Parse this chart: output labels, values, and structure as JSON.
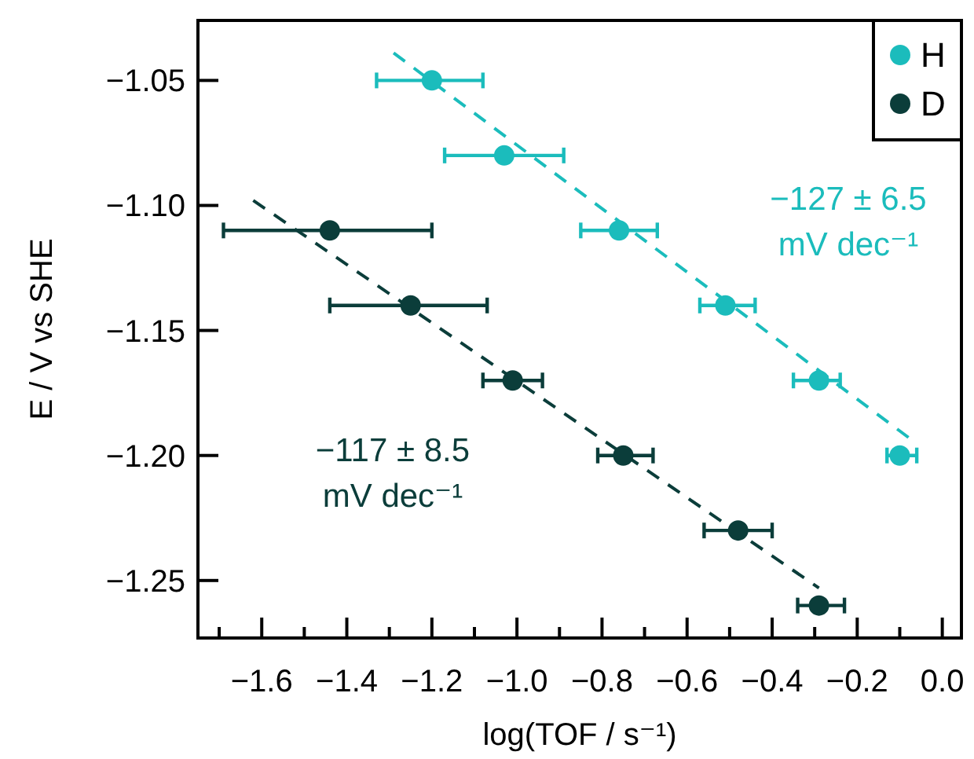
{
  "chart_data": {
    "type": "scatter",
    "xlabel": "log(TOF / s⁻¹)",
    "ylabel": "E / V vs SHE",
    "xlim": [
      -1.75,
      0.045
    ],
    "ylim": [
      -1.273,
      -1.026
    ],
    "xticks": [
      -1.6,
      -1.4,
      -1.2,
      {
        "value": -1.0,
        "label": "−1.0"
      },
      -0.8,
      -0.6,
      -0.4,
      -0.2,
      {
        "value": 0,
        "label": "0.0"
      }
    ],
    "yticks": [
      -1.05,
      {
        "value": -1.1,
        "label": "−1.10"
      },
      -1.15,
      {
        "value": -1.2,
        "label": "−1.20"
      },
      -1.25
    ],
    "marker": "circle",
    "grid": false,
    "legend": "top right",
    "series": [
      {
        "name": "H",
        "color": "#1bbcbc",
        "x": [
          -1.2,
          -1.03,
          -0.76,
          -0.51,
          -0.29,
          -0.1
        ],
        "values": [
          -1.05,
          -1.08,
          -1.11,
          -1.14,
          -1.17,
          -1.2
        ],
        "xerrors": [
          [
            -1.33,
            -1.08
          ],
          [
            -1.17,
            -0.89
          ],
          [
            -0.85,
            -0.67
          ],
          [
            -0.57,
            -0.44
          ],
          [
            -0.35,
            -0.24
          ],
          [
            -0.13,
            -0.06
          ]
        ]
      },
      {
        "name": "D",
        "color": "#0b3d3a",
        "x": [
          -1.44,
          -1.25,
          -1.01,
          -0.75,
          -0.48,
          -0.29
        ],
        "values": [
          -1.11,
          -1.14,
          -1.17,
          -1.2,
          -1.23,
          -1.26
        ],
        "xerrors": [
          [
            -1.69,
            -1.2
          ],
          [
            -1.44,
            -1.07
          ],
          [
            -1.08,
            -0.94
          ],
          [
            -0.81,
            -0.68
          ],
          [
            -0.56,
            -0.4
          ],
          [
            -0.34,
            -0.23
          ]
        ]
      },
      {
        "type": "line",
        "marker": "none",
        "color": "#1bbcbc",
        "line_style": "dashed",
        "x": [
          -1.29,
          -0.07
        ],
        "values": [
          -1.039,
          -1.194
        ]
      },
      {
        "type": "line",
        "marker": "none",
        "color": "#0b3d3a",
        "line_style": "dashed",
        "x": [
          -1.62,
          -0.29
        ],
        "values": [
          -1.098,
          -1.253
        ]
      }
    ],
    "annotations": [
      "−127 ± 6.5\nmV dec⁻¹",
      "−117 ± 8.5\nmV dec⁻¹"
    ]
  }
}
